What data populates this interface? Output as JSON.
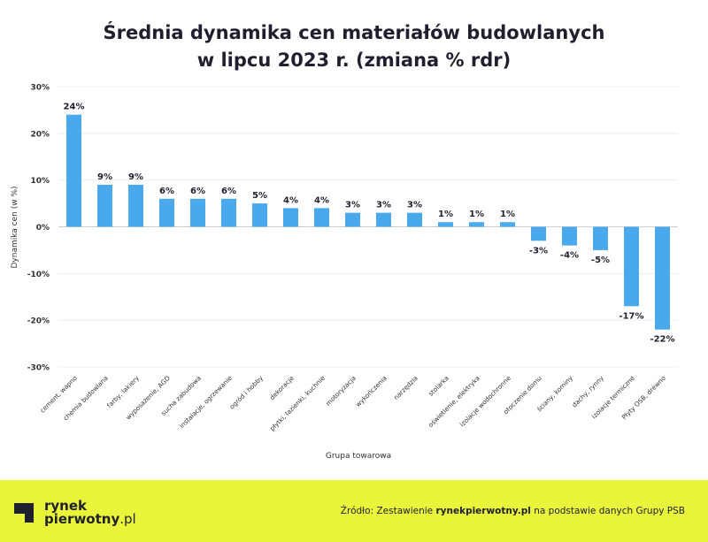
{
  "chart_data": {
    "type": "bar",
    "title_line1": "Średnia dynamika cen materiałów budowlanych",
    "title_line2": "w lipcu 2023 r. (zmiana % rdr)",
    "ylabel": "Dynamika cen (w %)",
    "xlabel": "Grupa towarowa",
    "ylim": [
      -30,
      30
    ],
    "yticks": [
      30,
      20,
      10,
      0,
      -10,
      -20,
      -30
    ],
    "ytick_labels": [
      "30%",
      "20%",
      "10%",
      "0%",
      "-10%",
      "-20%",
      "-30%"
    ],
    "grid": true,
    "legend": "none",
    "categories": [
      "cement, wapno",
      "chemia budowlana",
      "farby, lakiery",
      "wyposażenie, AGD",
      "sucha zabudowa",
      "instalacje, ogrzewanie",
      "ogród i hobby",
      "dekoracje",
      "płytki, łazienki, kuchnie",
      "motoryzacja",
      "wykończenia",
      "narzędzia",
      "stolarka",
      "oświetlenie, elektryka",
      "izolacje wodochronne",
      "otoczenie domu",
      "ściany, kominy",
      "dachy, rynny",
      "izolacje termiczne",
      "Płyty OSB, drewno"
    ],
    "values": [
      24,
      9,
      9,
      6,
      6,
      6,
      5,
      4,
      4,
      3,
      3,
      3,
      1,
      1,
      1,
      -3,
      -4,
      -5,
      -17,
      -22
    ],
    "value_labels": [
      "24%",
      "9%",
      "9%",
      "6%",
      "6%",
      "6%",
      "5%",
      "4%",
      "4%",
      "3%",
      "3%",
      "3%",
      "1%",
      "1%",
      "1%",
      "-3%",
      "-4%",
      "-5%",
      "-17%",
      "-22%"
    ],
    "bar_color": "#4aa8ec"
  },
  "footer": {
    "logo_line1": "rynek",
    "logo_line2_bold": "pierwotny",
    "logo_line2_rest": ".pl",
    "source_prefix": "Źródło: Zestawienie ",
    "source_bold": "rynekpierwotny.pl",
    "source_suffix": " na podstawie danych Grupy PSB",
    "background_color": "#e8f53a"
  }
}
